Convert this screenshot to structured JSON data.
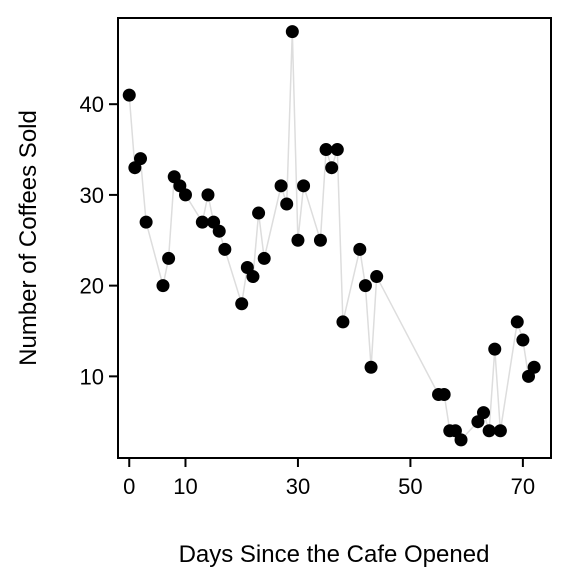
{
  "chart_data": {
    "type": "scatter",
    "title": "",
    "xlabel": "Days Since the Cafe Opened",
    "ylabel": "Number of Coffees Sold",
    "xlim": [
      -2,
      75
    ],
    "ylim": [
      1,
      49.5
    ],
    "xticks": [
      0,
      10,
      30,
      50,
      70
    ],
    "yticks": [
      10,
      20,
      30,
      40
    ],
    "grid": false,
    "connecting_line": true,
    "colors": {
      "points": "#000000",
      "line": "#dddddd",
      "frame": "#000000"
    },
    "series": [
      {
        "x": [
          0,
          1,
          2,
          3,
          6,
          7,
          8,
          9,
          10,
          13,
          14,
          15,
          16,
          17,
          20,
          21,
          22,
          23,
          24,
          27,
          28,
          29,
          30,
          31,
          34,
          35,
          36,
          37,
          38,
          41,
          42,
          43,
          44,
          55,
          56,
          57,
          58,
          59,
          62,
          63,
          64,
          65,
          66,
          69,
          70,
          71,
          72
        ],
        "y": [
          41,
          33,
          34,
          27,
          20,
          23,
          32,
          31,
          30,
          27,
          30,
          27,
          26,
          24,
          18,
          22,
          21,
          28,
          23,
          31,
          29,
          48,
          25,
          31,
          25,
          35,
          33,
          35,
          16,
          24,
          20,
          11,
          21,
          8,
          8,
          4,
          4,
          3,
          5,
          6,
          4,
          13,
          4,
          16,
          14,
          10,
          11
        ]
      }
    ]
  }
}
